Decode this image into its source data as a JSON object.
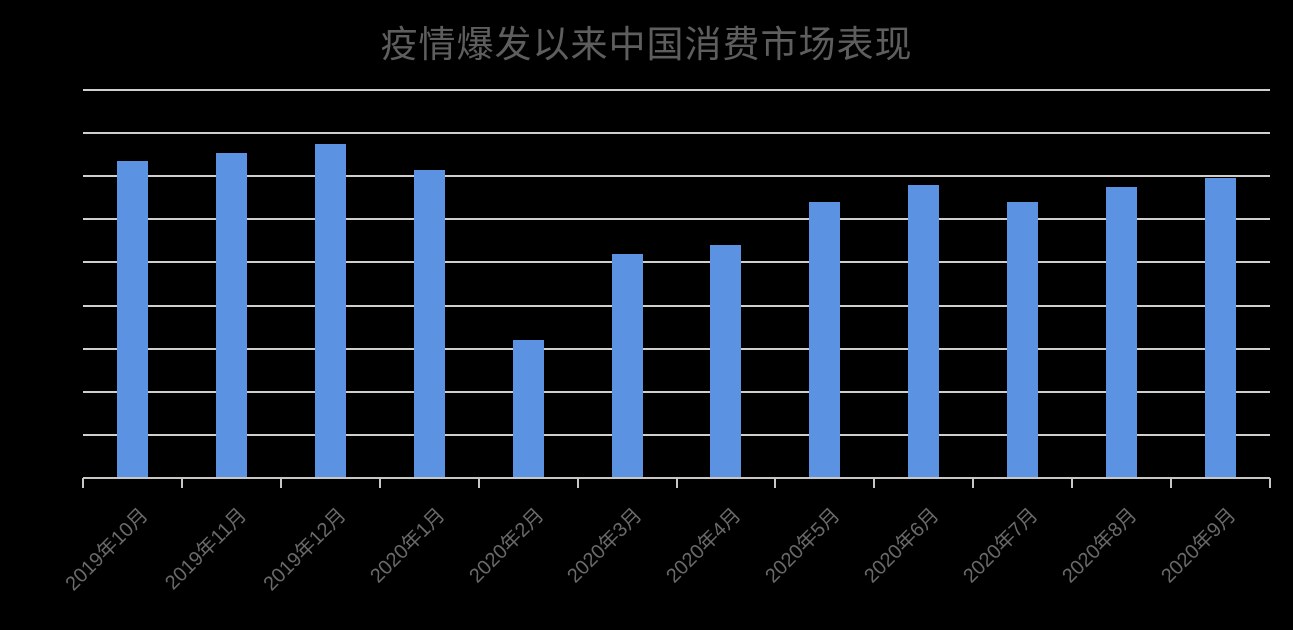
{
  "page": {
    "background_color": "#000000"
  },
  "chart_data": {
    "type": "bar",
    "title": "疫情爆发以来中国消费市场表现",
    "categories": [
      "2019年10月",
      "2019年11月",
      "2019年12月",
      "2020年1月",
      "2020年2月",
      "2020年3月",
      "2020年4月",
      "2020年5月",
      "2020年6月",
      "2020年7月",
      "2020年8月",
      "2020年9月"
    ],
    "values": [
      7.35,
      7.55,
      7.75,
      7.15,
      3.2,
      5.2,
      5.4,
      6.4,
      6.8,
      6.4,
      6.75,
      6.95
    ],
    "value_unit": "gridline-units (y-axis tick labels are not visible in the image; 1 unit = 1 horizontal gridline interval)",
    "xlabel": "",
    "ylabel": "",
    "ylim": [
      0,
      9
    ],
    "grid": true,
    "gridline_count": 10,
    "legend": "none",
    "x_label_rotation_deg": -45,
    "bar_color": "#5b93e2",
    "gridline_color": "#d0cfcc",
    "axis_color": "#c8c7c4",
    "title_color": "#5e5e5e",
    "label_color": "#6a6a6a"
  }
}
